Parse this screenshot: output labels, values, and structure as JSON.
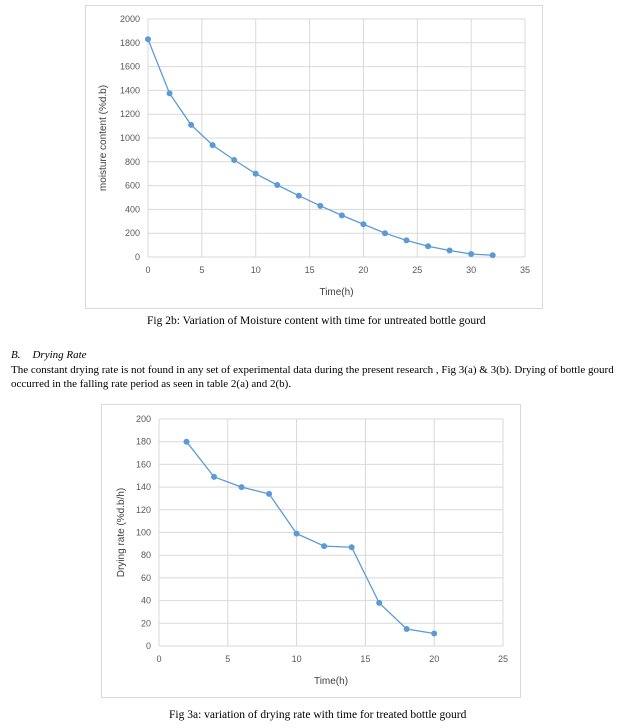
{
  "chart_data": [
    {
      "type": "scatter",
      "mode": "line+markers",
      "xlabel": "Time(h)",
      "ylabel": "moisture content (%d.b)",
      "xlim": [
        0,
        35
      ],
      "ylim": [
        0,
        2000
      ],
      "xticks": [
        0,
        5,
        10,
        15,
        20,
        25,
        30,
        35
      ],
      "yticks": [
        0,
        200,
        400,
        600,
        800,
        1000,
        1200,
        1400,
        1600,
        1800,
        2000
      ],
      "grid": "both",
      "color": "#5b9bd5",
      "series": [
        {
          "x": [
            0,
            2,
            4,
            6,
            8,
            10,
            12,
            14,
            16,
            18,
            20,
            22,
            24,
            26,
            28,
            30,
            32
          ],
          "y": [
            1830,
            1375,
            1110,
            940,
            815,
            700,
            605,
            515,
            430,
            350,
            275,
            200,
            140,
            90,
            55,
            25,
            15
          ]
        }
      ]
    },
    {
      "type": "scatter",
      "mode": "line+markers",
      "xlabel": "Time(h)",
      "ylabel": "Drying rate (%d.b/h)",
      "xlim": [
        0,
        25
      ],
      "ylim": [
        0,
        200
      ],
      "xticks": [
        0,
        5,
        10,
        15,
        20,
        25
      ],
      "yticks": [
        0,
        20,
        40,
        60,
        80,
        100,
        120,
        140,
        160,
        180,
        200
      ],
      "grid": "both",
      "color": "#5b9bd5",
      "series": [
        {
          "x": [
            2,
            4,
            6,
            8,
            10,
            12,
            14,
            16,
            18,
            20
          ],
          "y": [
            180,
            149,
            140,
            134,
            99,
            88,
            87,
            38,
            15,
            11
          ]
        }
      ]
    }
  ],
  "captions": {
    "fig2b": "Fig 2b: Variation of Moisture content with time for untreated bottle gourd",
    "fig3a": "Fig 3a: variation of drying rate with time for treated bottle gourd"
  },
  "section": {
    "number": "B.",
    "title": "Drying Rate",
    "paragraph": "The constant drying rate is not found in any set of experimental data during the present research , Fig 3(a) & 3(b). Drying of bottle gourd occurred in the falling rate period as seen in table 2(a) and 2(b)."
  }
}
